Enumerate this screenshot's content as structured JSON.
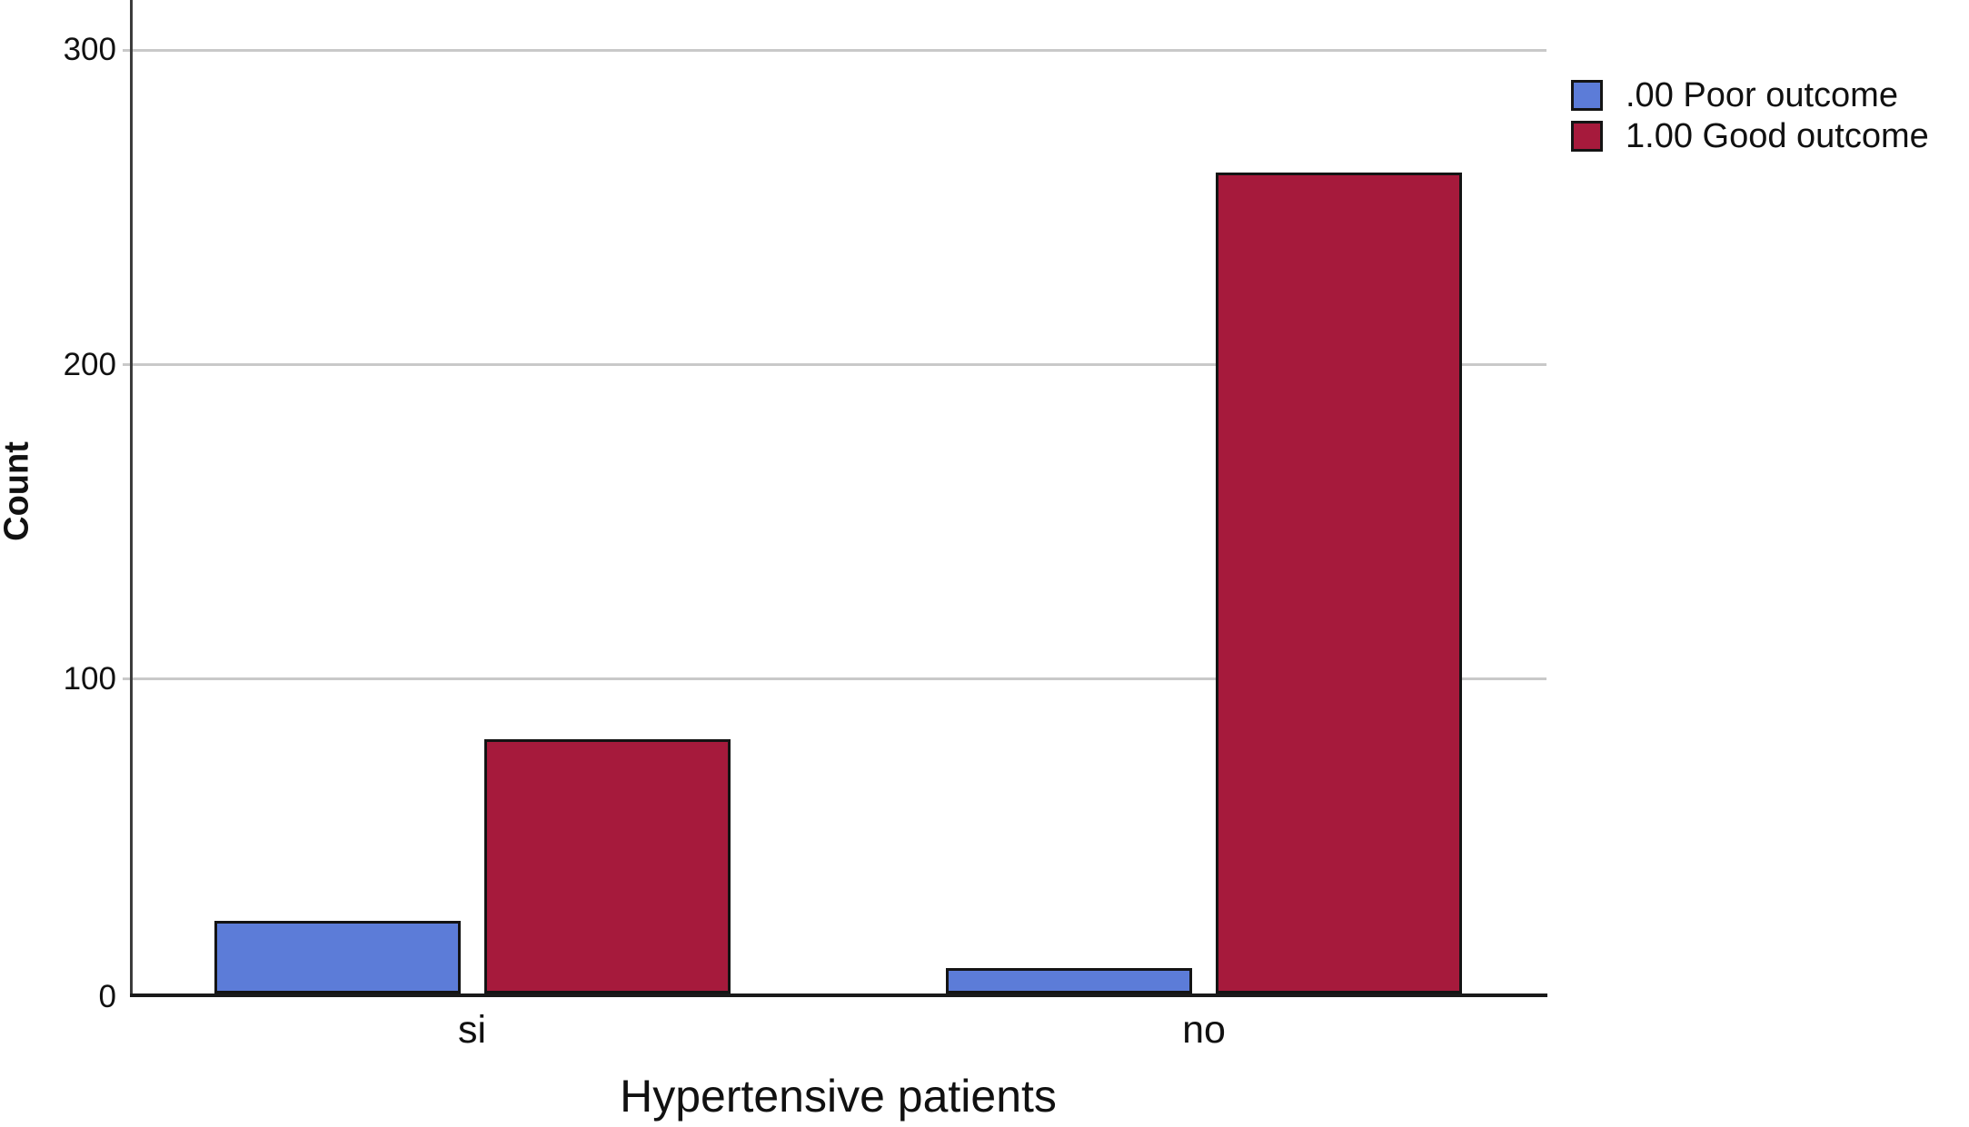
{
  "figure": {
    "background": "#ffffff"
  },
  "chart_data": {
    "type": "bar",
    "title": "",
    "xlabel": "Hypertensive patients",
    "ylabel": "Count",
    "categories": [
      "si",
      "no"
    ],
    "series": [
      {
        "name": ".00 Poor outcome",
        "color": "#5C7CD8",
        "values": [
          23,
          8
        ]
      },
      {
        "name": "1.00 Good outcome",
        "color": "#A61A3C",
        "values": [
          81,
          261
        ]
      }
    ],
    "ylim": [
      0,
      316
    ],
    "yticks": [
      0,
      100,
      200,
      300
    ],
    "grid": "horizontal",
    "legend_position": "top-right"
  },
  "colors": {
    "gridline": "#c9c9c9",
    "x_axis": "#1a1a1a",
    "y_axis": "#3c3c3c",
    "bar_border": "#141414",
    "text": "#111111"
  }
}
